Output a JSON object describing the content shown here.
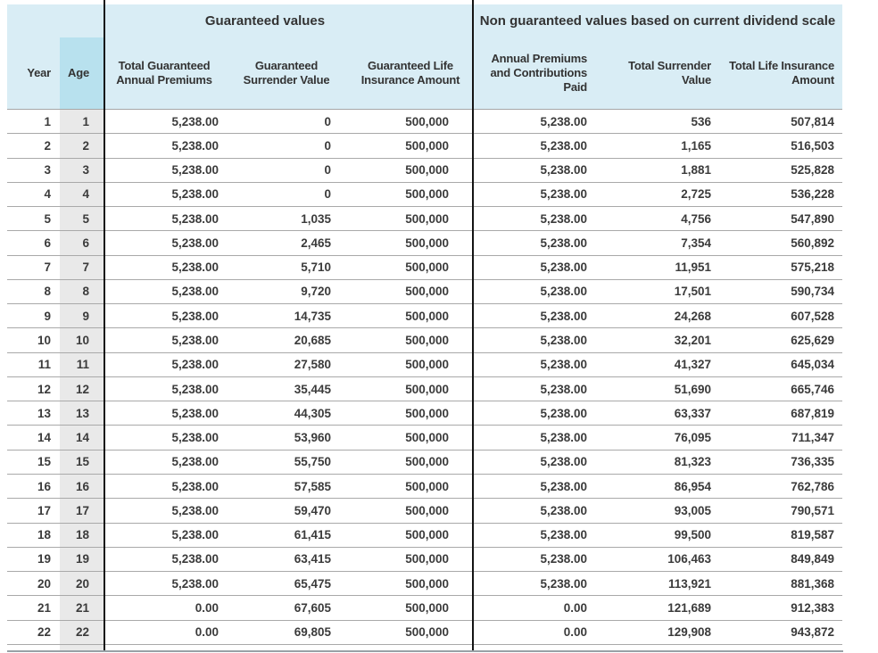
{
  "table": {
    "group_headers": [
      "Guaranteed values",
      "Non guaranteed values based on current dividend scale"
    ],
    "col_headers": [
      "Year",
      "Age",
      "Total Guaranteed\nAnnual Premiums",
      "Guaranteed\nSurrender Value",
      "Guaranteed Life\nInsurance Amount",
      "Annual Premiums\nand Contributions\nPaid",
      "Total Surrender\nValue",
      "Total Life Insurance\nAmount"
    ],
    "colors": {
      "header_bg": "#d9edf5",
      "age_header_bg": "#b8e1ee",
      "age_column_bg": "#e9e9e9",
      "row_line": "#a9a9a9",
      "section_divider": "#141414",
      "bottom_rule": "#98a1a6",
      "text": "#3b3b3b"
    },
    "rows": [
      [
        "1",
        "1",
        "5,238.00",
        "0",
        "500,000",
        "5,238.00",
        "536",
        "507,814"
      ],
      [
        "2",
        "2",
        "5,238.00",
        "0",
        "500,000",
        "5,238.00",
        "1,165",
        "516,503"
      ],
      [
        "3",
        "3",
        "5,238.00",
        "0",
        "500,000",
        "5,238.00",
        "1,881",
        "525,828"
      ],
      [
        "4",
        "4",
        "5,238.00",
        "0",
        "500,000",
        "5,238.00",
        "2,725",
        "536,228"
      ],
      [
        "5",
        "5",
        "5,238.00",
        "1,035",
        "500,000",
        "5,238.00",
        "4,756",
        "547,890"
      ],
      [
        "6",
        "6",
        "5,238.00",
        "2,465",
        "500,000",
        "5,238.00",
        "7,354",
        "560,892"
      ],
      [
        "7",
        "7",
        "5,238.00",
        "5,710",
        "500,000",
        "5,238.00",
        "11,951",
        "575,218"
      ],
      [
        "8",
        "8",
        "5,238.00",
        "9,720",
        "500,000",
        "5,238.00",
        "17,501",
        "590,734"
      ],
      [
        "9",
        "9",
        "5,238.00",
        "14,735",
        "500,000",
        "5,238.00",
        "24,268",
        "607,528"
      ],
      [
        "10",
        "10",
        "5,238.00",
        "20,685",
        "500,000",
        "5,238.00",
        "32,201",
        "625,629"
      ],
      [
        "11",
        "11",
        "5,238.00",
        "27,580",
        "500,000",
        "5,238.00",
        "41,327",
        "645,034"
      ],
      [
        "12",
        "12",
        "5,238.00",
        "35,445",
        "500,000",
        "5,238.00",
        "51,690",
        "665,746"
      ],
      [
        "13",
        "13",
        "5,238.00",
        "44,305",
        "500,000",
        "5,238.00",
        "63,337",
        "687,819"
      ],
      [
        "14",
        "14",
        "5,238.00",
        "53,960",
        "500,000",
        "5,238.00",
        "76,095",
        "711,347"
      ],
      [
        "15",
        "15",
        "5,238.00",
        "55,750",
        "500,000",
        "5,238.00",
        "81,323",
        "736,335"
      ],
      [
        "16",
        "16",
        "5,238.00",
        "57,585",
        "500,000",
        "5,238.00",
        "86,954",
        "762,786"
      ],
      [
        "17",
        "17",
        "5,238.00",
        "59,470",
        "500,000",
        "5,238.00",
        "93,005",
        "790,571"
      ],
      [
        "18",
        "18",
        "5,238.00",
        "61,415",
        "500,000",
        "5,238.00",
        "99,500",
        "819,587"
      ],
      [
        "19",
        "19",
        "5,238.00",
        "63,415",
        "500,000",
        "5,238.00",
        "106,463",
        "849,849"
      ],
      [
        "20",
        "20",
        "5,238.00",
        "65,475",
        "500,000",
        "5,238.00",
        "113,921",
        "881,368"
      ],
      [
        "21",
        "21",
        "0.00",
        "67,605",
        "500,000",
        "0.00",
        "121,689",
        "912,383"
      ],
      [
        "22",
        "22",
        "0.00",
        "69,805",
        "500,000",
        "0.00",
        "129,908",
        "943,872"
      ]
    ]
  }
}
